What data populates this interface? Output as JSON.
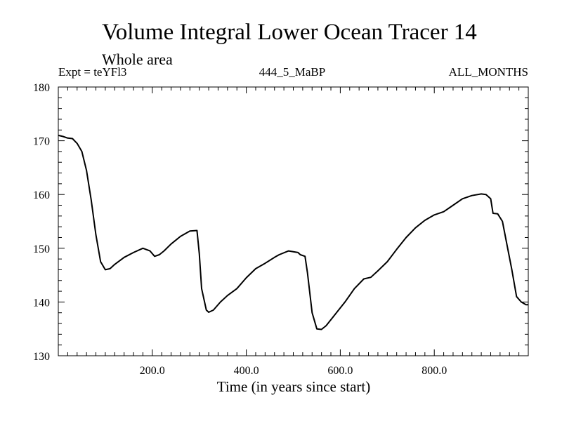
{
  "chart_data": {
    "type": "line",
    "title": "Volume Integral Lower Ocean Tracer 14",
    "subtitle": "Whole area",
    "expt_label": "Expt = teYFl3",
    "run_label": "444_5_MaBP",
    "period_label": "ALL_MONTHS",
    "xlabel": "Time (in years since start)",
    "ylabel": "",
    "xlim": [
      0,
      1000
    ],
    "ylim": [
      130,
      180
    ],
    "x_ticks": [
      200,
      400,
      600,
      800
    ],
    "x_tick_labels": [
      "200.0",
      "400.0",
      "600.0",
      "800.0"
    ],
    "y_ticks": [
      130,
      140,
      150,
      160,
      170,
      180
    ],
    "y_tick_labels": [
      "130",
      "140",
      "150",
      "160",
      "170",
      "180"
    ],
    "series": [
      {
        "name": "Lower Ocean Tracer 14",
        "color": "#000000",
        "x": [
          0,
          10,
          20,
          30,
          40,
          50,
          60,
          70,
          80,
          90,
          100,
          110,
          120,
          140,
          160,
          180,
          195,
          205,
          215,
          225,
          240,
          260,
          280,
          295,
          300,
          305,
          315,
          320,
          330,
          345,
          360,
          380,
          400,
          420,
          440,
          460,
          470,
          490,
          510,
          515,
          525,
          530,
          540,
          550,
          560,
          570,
          590,
          610,
          630,
          650,
          665,
          680,
          700,
          720,
          740,
          760,
          780,
          800,
          820,
          840,
          860,
          880,
          900,
          910,
          920,
          925,
          935,
          945,
          955,
          965,
          975,
          985,
          995,
          1000
        ],
        "y": [
          171,
          170.8,
          170.5,
          170.4,
          169.5,
          168,
          164.5,
          159,
          152.5,
          147.5,
          146,
          146.2,
          147,
          148.3,
          149.2,
          150,
          149.5,
          148.5,
          148.8,
          149.5,
          150.8,
          152.2,
          153.2,
          153.3,
          149,
          142.5,
          138.5,
          138.1,
          138.5,
          140,
          141.2,
          142.5,
          144.5,
          146.2,
          147.2,
          148.3,
          148.8,
          149.5,
          149.2,
          148.8,
          148.5,
          145.5,
          138,
          135,
          134.9,
          135.6,
          137.8,
          140,
          142.5,
          144.3,
          144.6,
          145.8,
          147.5,
          149.8,
          152,
          153.8,
          155.2,
          156.2,
          156.8,
          158,
          159.2,
          159.8,
          160.1,
          160,
          159.2,
          156.5,
          156.4,
          155,
          150.5,
          146,
          141,
          140,
          139.5,
          139.5
        ]
      }
    ]
  }
}
